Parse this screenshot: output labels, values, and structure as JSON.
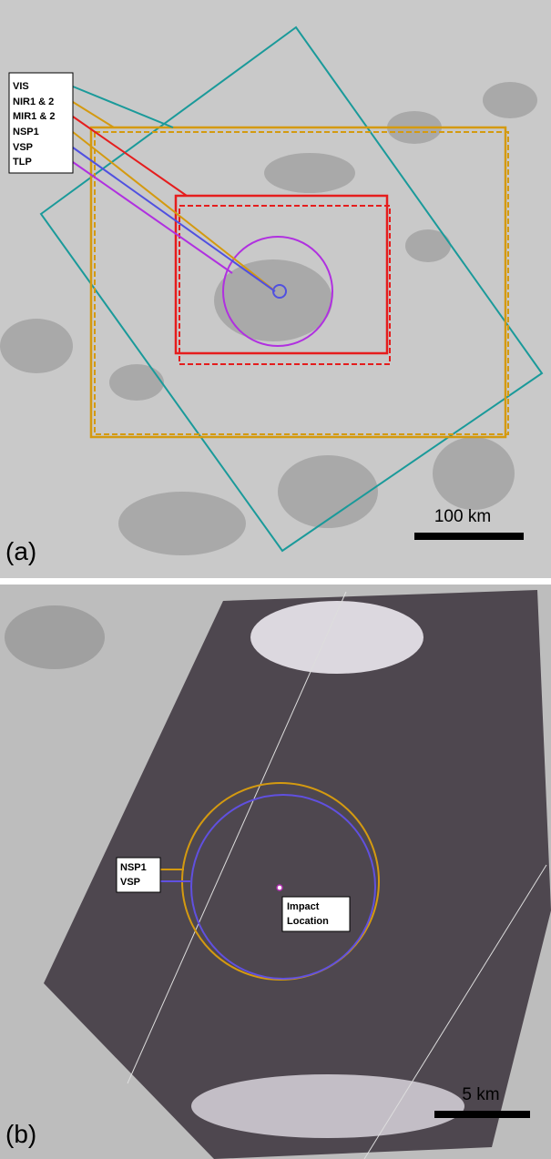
{
  "panel_a": {
    "label": "(a)",
    "legend": [
      "VIS",
      "NIR1 & 2",
      "MIR1 & 2",
      "NSP1",
      "VSP",
      "TLP"
    ],
    "scale_bar": "100 km"
  },
  "panel_b": {
    "label": "(b)",
    "legend": [
      "NSP1",
      "VSP"
    ],
    "annotation": [
      "Impact",
      "Location"
    ],
    "scale_bar": "5 km"
  }
}
